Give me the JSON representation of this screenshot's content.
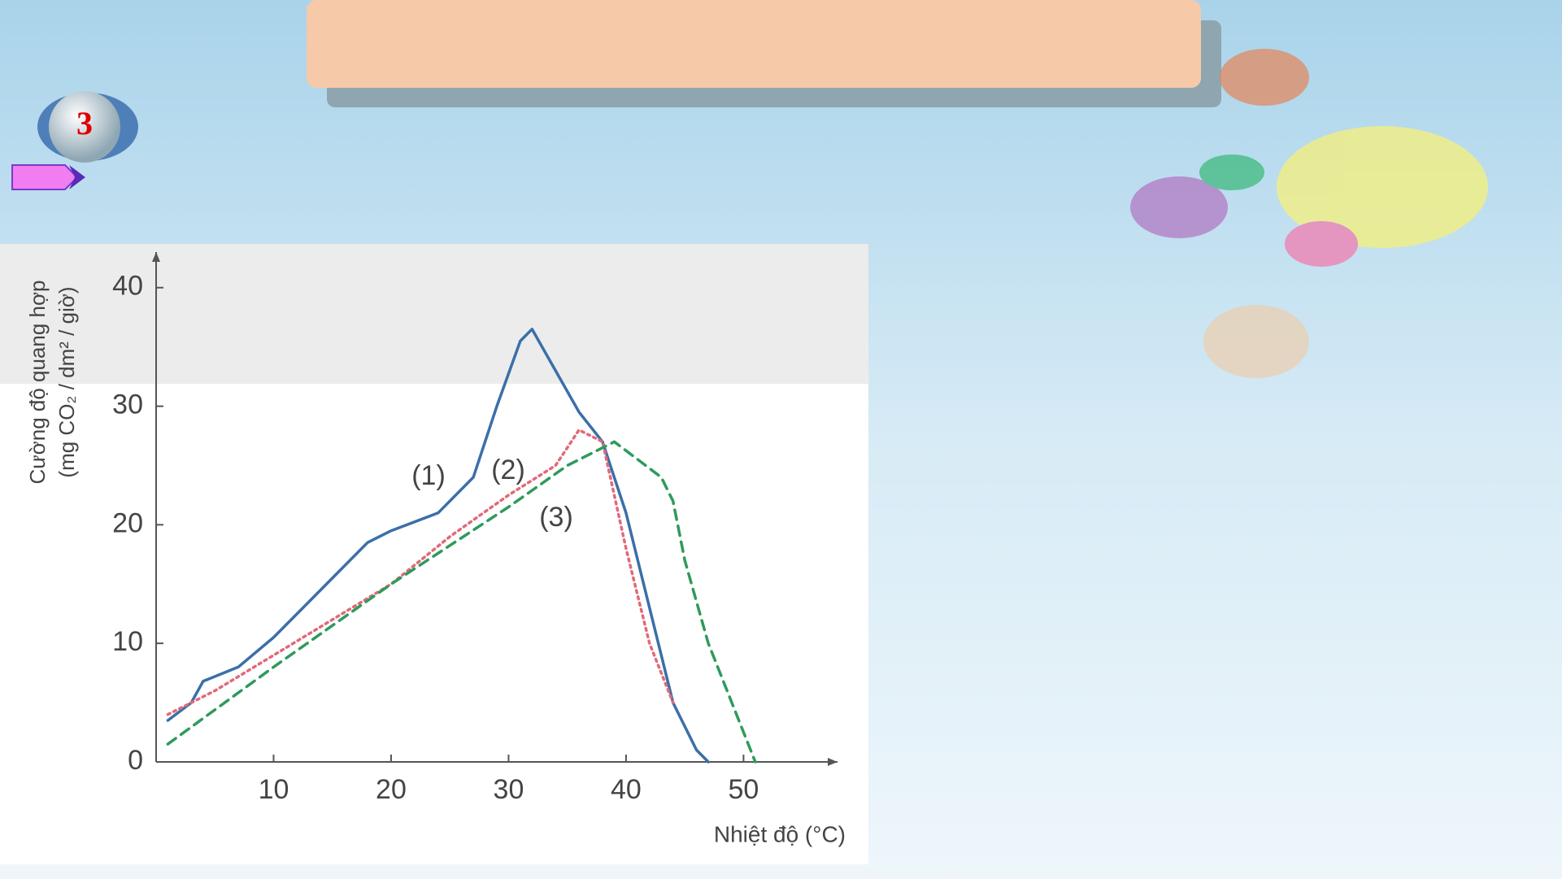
{
  "badge": "3",
  "chart_data": {
    "type": "line",
    "y_label": [
      "Cường độ quang hợp",
      "(mg CO₂ / dm² / giờ)"
    ],
    "x_label": "Nhiệt độ (°C)",
    "annotations": [
      "(1)",
      "(2)",
      "(3)"
    ],
    "xlim": [
      0,
      58
    ],
    "xticks": [
      10,
      20,
      30,
      40,
      50
    ],
    "ylim": [
      0,
      43
    ],
    "yticks": [
      0,
      10,
      20,
      30,
      40
    ],
    "series": [
      {
        "color": "#3b6fa8",
        "dash": "solid",
        "x": [
          1,
          3,
          4,
          7,
          10,
          15,
          18,
          20,
          24,
          27,
          29,
          31,
          32,
          34,
          36,
          38,
          40,
          42,
          44,
          46,
          47
        ],
        "values": [
          3.5,
          5,
          6.8,
          8,
          10.5,
          15.5,
          18.5,
          19.5,
          21,
          24,
          30,
          35.5,
          36.5,
          33,
          29.5,
          27,
          21,
          13,
          5,
          1,
          0
        ]
      },
      {
        "color": "#e06a78",
        "dash": "dotted",
        "x": [
          1,
          5,
          10,
          20,
          25,
          30,
          34,
          36,
          38,
          40,
          42,
          44
        ],
        "values": [
          4,
          6,
          9,
          15,
          19,
          22.5,
          25,
          28,
          27,
          18,
          10,
          5
        ]
      },
      {
        "color": "#2f9a5c",
        "dash": "dashed",
        "x": [
          1,
          10,
          20,
          30,
          35,
          39,
          43,
          44,
          45,
          47,
          49,
          51
        ],
        "values": [
          1.5,
          8,
          15,
          21.5,
          25,
          27,
          24,
          22,
          17,
          10,
          5,
          0
        ]
      }
    ]
  }
}
